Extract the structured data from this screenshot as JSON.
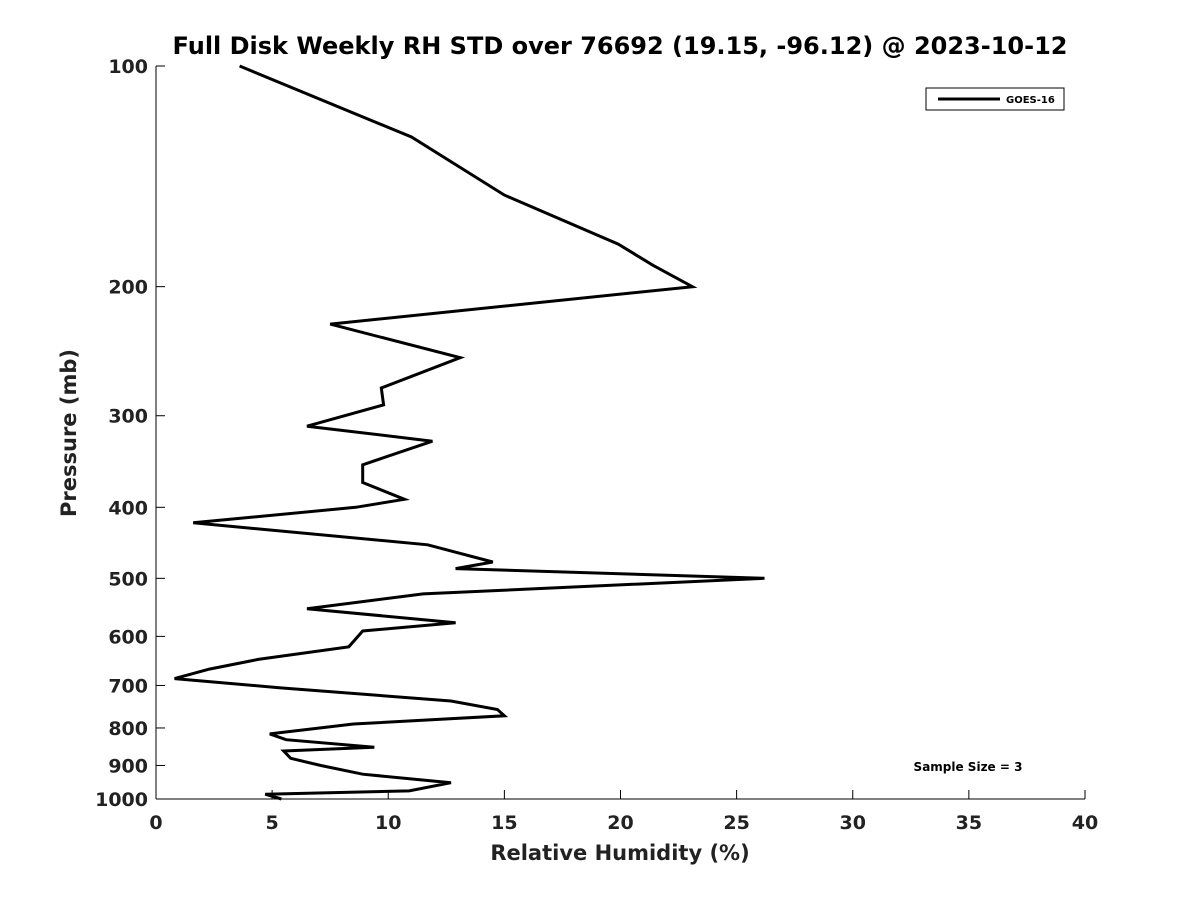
{
  "chart_data": {
    "type": "line",
    "title": "Full Disk Weekly RH STD over 76692 (19.15, -96.12) @ 2023-10-12",
    "xlabel": "Relative Humidity (%)",
    "ylabel": "Pressure (mb)",
    "xlim": [
      0,
      40
    ],
    "ylim": [
      100,
      1000
    ],
    "yscale": "log",
    "y_inverted": true,
    "xticks": [
      0,
      5,
      10,
      15,
      20,
      25,
      30,
      35,
      40
    ],
    "yticks": [
      100,
      200,
      300,
      400,
      500,
      600,
      700,
      800,
      900,
      1000
    ],
    "grid": false,
    "legend_location": "top-right",
    "annotation": "Sample Size = 3",
    "series": [
      {
        "name": "GOES-16",
        "color": "#000000",
        "x": [
          3.6,
          11.0,
          15.0,
          19.9,
          21.4,
          23.1,
          7.5,
          13.1,
          9.7,
          9.8,
          6.5,
          11.9,
          8.9,
          8.9,
          10.7,
          8.6,
          1.6,
          11.7,
          14.5,
          12.9,
          26.2,
          11.5,
          6.5,
          12.9,
          8.9,
          8.3,
          4.4,
          2.3,
          0.8,
          5.3,
          12.7,
          14.7,
          15.0,
          8.5,
          4.9,
          5.6,
          9.4,
          5.5,
          5.8,
          7.1,
          8.9,
          12.7,
          10.9,
          4.7,
          5.4
        ],
        "y": [
          100,
          125,
          150,
          175,
          187,
          200,
          225,
          250,
          275,
          290,
          310,
          325,
          350,
          370,
          390,
          400,
          420,
          450,
          475,
          485,
          500,
          525,
          550,
          575,
          590,
          620,
          645,
          665,
          685,
          705,
          735,
          755,
          770,
          790,
          815,
          830,
          850,
          860,
          880,
          900,
          925,
          950,
          975,
          985,
          1000
        ]
      }
    ]
  }
}
